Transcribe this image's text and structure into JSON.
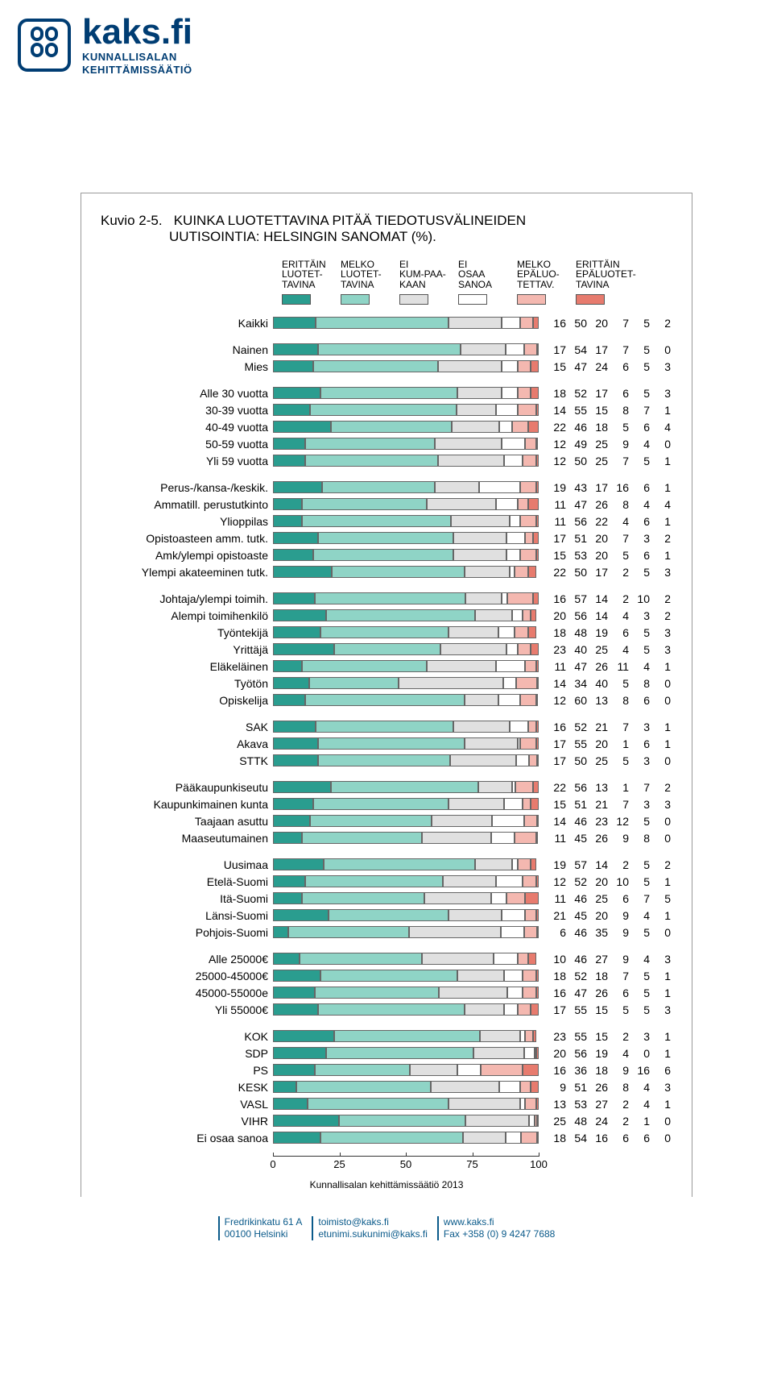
{
  "brand": {
    "title": "kaks.fi",
    "sub1": "KUNNALLISALAN",
    "sub2": "KEHITTÄMISSÄÄTIÖ"
  },
  "chart": {
    "kuvio_label": "Kuvio 2-5.",
    "title_line1": "KUINKA LUOTETTAVINA PITÄÄ TIEDOTUSVÄLINEIDEN",
    "title_line2": "UUTISOINTIA: HELSINGIN SANOMAT (%).",
    "legend": [
      "ERITTÄIN LUOTET-TAVINA",
      "MELKO LUOTET-TAVINA",
      "EI KUM-PAA-KAAN",
      "EI OSAA SANOA",
      "MELKO EPÄLUO-TETTAV.",
      "ERITTÄIN EPÄLUOTET-TAVINA"
    ],
    "colors": [
      "#2a9d8f",
      "#8fd4c6",
      "#e0e0e0",
      "#ffffff",
      "#f4b8b0",
      "#e77b6e"
    ],
    "border_color": "#666666",
    "background": "#ffffff",
    "x_ticks": [
      0,
      25,
      50,
      75,
      100
    ],
    "groups": [
      [
        {
          "label": "Kaikki",
          "v": [
            16,
            50,
            20,
            7,
            5,
            2
          ]
        }
      ],
      [
        {
          "label": "Nainen",
          "v": [
            17,
            54,
            17,
            7,
            5,
            0
          ]
        },
        {
          "label": "Mies",
          "v": [
            15,
            47,
            24,
            6,
            5,
            3
          ]
        }
      ],
      [
        {
          "label": "Alle 30 vuotta",
          "v": [
            18,
            52,
            17,
            6,
            5,
            3
          ]
        },
        {
          "label": "30-39 vuotta",
          "v": [
            14,
            55,
            15,
            8,
            7,
            1
          ]
        },
        {
          "label": "40-49 vuotta",
          "v": [
            22,
            46,
            18,
            5,
            6,
            4
          ]
        },
        {
          "label": "50-59 vuotta",
          "v": [
            12,
            49,
            25,
            9,
            4,
            0
          ]
        },
        {
          "label": "Yli 59 vuotta",
          "v": [
            12,
            50,
            25,
            7,
            5,
            1
          ]
        }
      ],
      [
        {
          "label": "Perus-/kansa-/keskik.",
          "v": [
            19,
            43,
            17,
            16,
            6,
            1
          ]
        },
        {
          "label": "Ammatill. perustutkinto",
          "v": [
            11,
            47,
            26,
            8,
            4,
            4
          ]
        },
        {
          "label": "Ylioppilas",
          "v": [
            11,
            56,
            22,
            4,
            6,
            1
          ]
        },
        {
          "label": "Opistoasteen amm. tutk.",
          "v": [
            17,
            51,
            20,
            7,
            3,
            2
          ]
        },
        {
          "label": "Amk/ylempi opistoaste",
          "v": [
            15,
            53,
            20,
            5,
            6,
            1
          ]
        },
        {
          "label": "Ylempi akateeminen tutk.",
          "v": [
            22,
            50,
            17,
            2,
            5,
            3
          ]
        }
      ],
      [
        {
          "label": "Johtaja/ylempi toimih.",
          "v": [
            16,
            57,
            14,
            2,
            10,
            2
          ]
        },
        {
          "label": "Alempi toimihenkilö",
          "v": [
            20,
            56,
            14,
            4,
            3,
            2
          ]
        },
        {
          "label": "Työntekijä",
          "v": [
            18,
            48,
            19,
            6,
            5,
            3
          ]
        },
        {
          "label": "Yrittäjä",
          "v": [
            23,
            40,
            25,
            4,
            5,
            3
          ]
        },
        {
          "label": "Eläkeläinen",
          "v": [
            11,
            47,
            26,
            11,
            4,
            1
          ]
        },
        {
          "label": "Työtön",
          "v": [
            14,
            34,
            40,
            5,
            8,
            0
          ]
        },
        {
          "label": "Opiskelija",
          "v": [
            12,
            60,
            13,
            8,
            6,
            0
          ]
        }
      ],
      [
        {
          "label": "SAK",
          "v": [
            16,
            52,
            21,
            7,
            3,
            1
          ]
        },
        {
          "label": "Akava",
          "v": [
            17,
            55,
            20,
            1,
            6,
            1
          ]
        },
        {
          "label": "STTK",
          "v": [
            17,
            50,
            25,
            5,
            3,
            0
          ]
        }
      ],
      [
        {
          "label": "Pääkaupunkiseutu",
          "v": [
            22,
            56,
            13,
            1,
            7,
            2
          ]
        },
        {
          "label": "Kaupunkimainen kunta",
          "v": [
            15,
            51,
            21,
            7,
            3,
            3
          ]
        },
        {
          "label": "Taajaan asuttu",
          "v": [
            14,
            46,
            23,
            12,
            5,
            0
          ]
        },
        {
          "label": "Maaseutumainen",
          "v": [
            11,
            45,
            26,
            9,
            8,
            0
          ]
        }
      ],
      [
        {
          "label": "Uusimaa",
          "v": [
            19,
            57,
            14,
            2,
            5,
            2
          ]
        },
        {
          "label": "Etelä-Suomi",
          "v": [
            12,
            52,
            20,
            10,
            5,
            1
          ]
        },
        {
          "label": "Itä-Suomi",
          "v": [
            11,
            46,
            25,
            6,
            7,
            5
          ]
        },
        {
          "label": "Länsi-Suomi",
          "v": [
            21,
            45,
            20,
            9,
            4,
            1
          ]
        },
        {
          "label": "Pohjois-Suomi",
          "v": [
            6,
            46,
            35,
            9,
            5,
            0
          ]
        }
      ],
      [
        {
          "label": "Alle 25000€",
          "v": [
            10,
            46,
            27,
            9,
            4,
            3
          ]
        },
        {
          "label": "25000-45000€",
          "v": [
            18,
            52,
            18,
            7,
            5,
            1
          ]
        },
        {
          "label": "45000-55000e",
          "v": [
            16,
            47,
            26,
            6,
            5,
            1
          ]
        },
        {
          "label": "Yli 55000€",
          "v": [
            17,
            55,
            15,
            5,
            5,
            3
          ]
        }
      ],
      [
        {
          "label": "KOK",
          "v": [
            23,
            55,
            15,
            2,
            3,
            1
          ]
        },
        {
          "label": "SDP",
          "v": [
            20,
            56,
            19,
            4,
            0,
            1
          ]
        },
        {
          "label": "PS",
          "v": [
            16,
            36,
            18,
            9,
            16,
            6
          ]
        },
        {
          "label": "KESK",
          "v": [
            9,
            51,
            26,
            8,
            4,
            3
          ]
        },
        {
          "label": "VASL",
          "v": [
            13,
            53,
            27,
            2,
            4,
            1
          ]
        },
        {
          "label": "VIHR",
          "v": [
            25,
            48,
            24,
            2,
            1,
            0
          ]
        },
        {
          "label": "Ei osaa sanoa",
          "v": [
            18,
            54,
            16,
            6,
            6,
            0
          ]
        }
      ]
    ],
    "footer": "Kunnallisalan kehittämissäätiö 2013"
  },
  "page_footer": {
    "col1a": "Fredrikinkatu 61 A",
    "col1b": "00100 Helsinki",
    "col2a": "toimisto@kaks.fi",
    "col2b": "etunimi.sukunimi@kaks.fi",
    "col3a": "www.kaks.fi",
    "col3b": "Fax +358 (0) 9 4247 7688"
  }
}
